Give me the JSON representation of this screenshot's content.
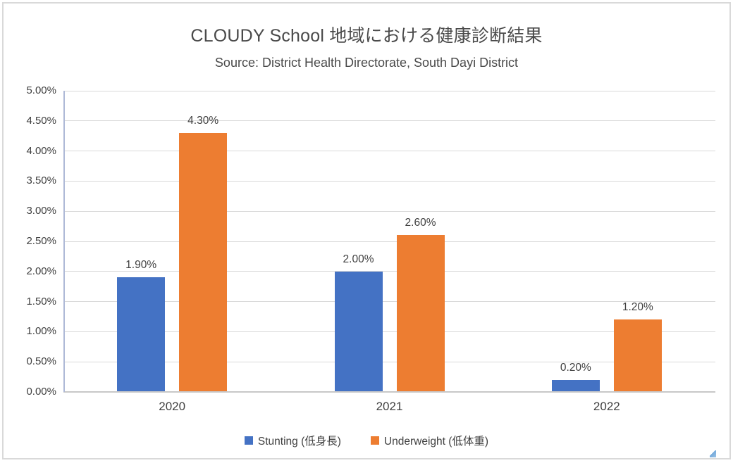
{
  "chart": {
    "title": "CLOUDY School 地域における健康診断結果",
    "subtitle": "Source: District Health Directorate, South Dayi District"
  },
  "chart_data": {
    "type": "bar",
    "title": "CLOUDY School 地域における健康診断結果",
    "subtitle": "Source: District Health Directorate, South Dayi District",
    "categories": [
      "2020",
      "2021",
      "2022"
    ],
    "series": [
      {
        "name": "Stunting (低身長)",
        "color": "#4472C4",
        "values": [
          1.9,
          2.0,
          0.2
        ],
        "labels": [
          "1.90%",
          "2.00%",
          "0.20%"
        ]
      },
      {
        "name": "Underweight (低体重)",
        "color": "#ED7D31",
        "values": [
          4.3,
          2.6,
          1.2
        ],
        "labels": [
          "4.30%",
          "2.60%",
          "1.20%"
        ]
      }
    ],
    "xlabel": "",
    "ylabel": "",
    "ylim": [
      0,
      5
    ],
    "ytick_step": 0.5,
    "ytick_labels": [
      "0.00%",
      "0.50%",
      "1.00%",
      "1.50%",
      "2.00%",
      "2.50%",
      "3.00%",
      "3.50%",
      "4.00%",
      "4.50%",
      "5.00%"
    ],
    "grid": true,
    "legend_position": "bottom"
  }
}
